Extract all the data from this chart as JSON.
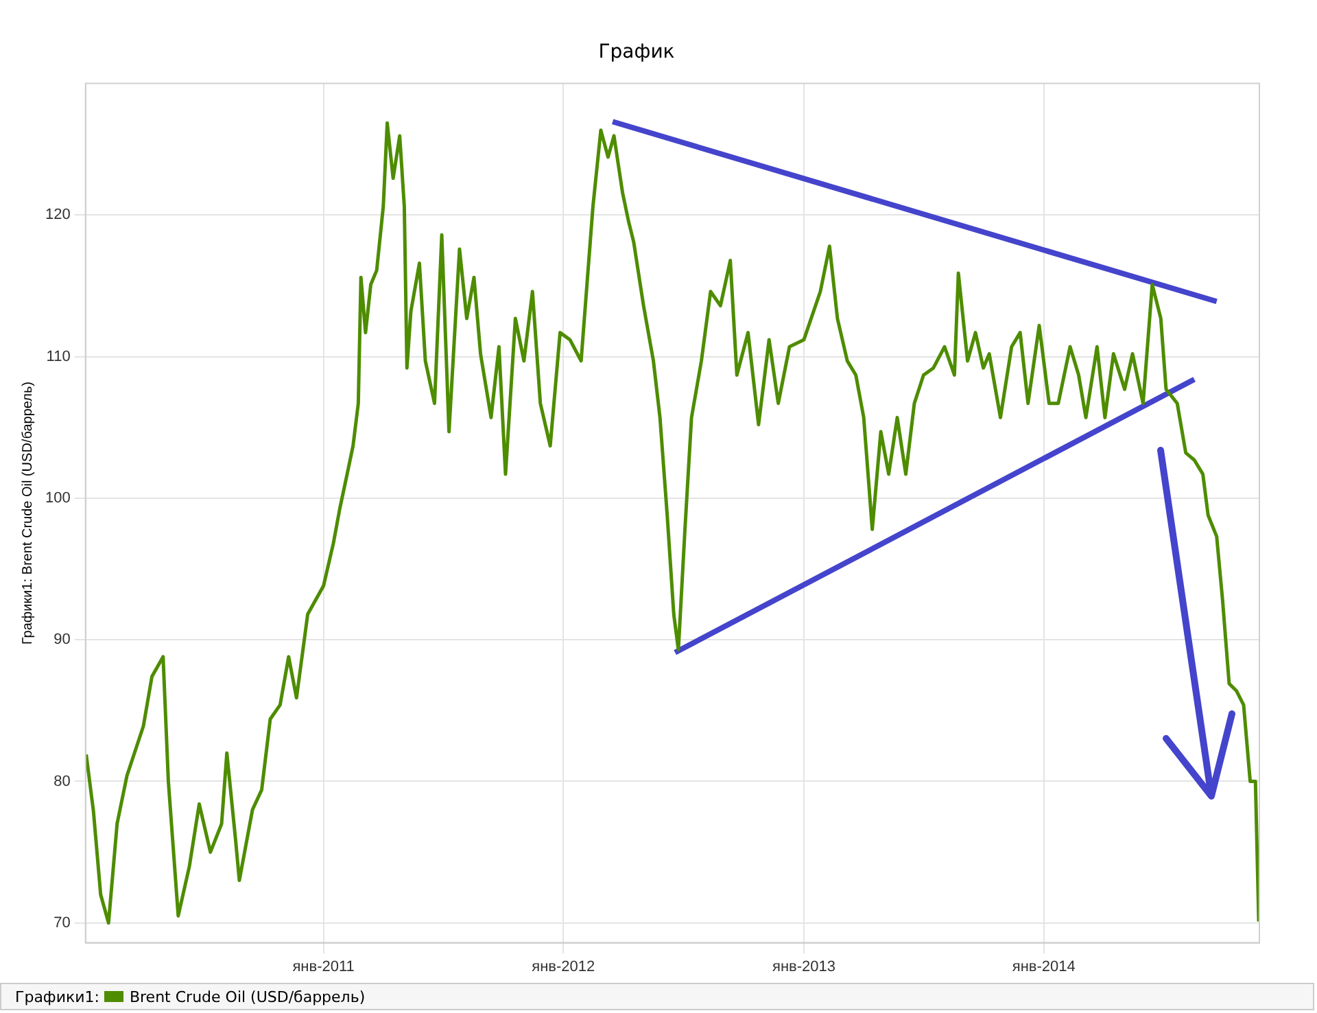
{
  "chart_data": {
    "type": "line",
    "title": "График",
    "ylabel": "Графики1: Brent Crude Oil (USD/баррель)",
    "legend_title": "Графики1:",
    "xlim": [
      "2010-01-04",
      "2014-11-25"
    ],
    "xticks": [
      {
        "value": "2011-01-01",
        "label": "янв-2011"
      },
      {
        "value": "2012-01-01",
        "label": "янв-2012"
      },
      {
        "value": "2013-01-01",
        "label": "янв-2013"
      },
      {
        "value": "2014-01-01",
        "label": "янв-2014"
      }
    ],
    "ylim": [
      68.6,
      129.3
    ],
    "yticks": [
      70,
      80,
      90,
      100,
      110,
      120
    ],
    "grid": true,
    "legend": "bottom left",
    "marker": "none",
    "series": [
      {
        "name": "Brent Crude Oil (USD/баррель)",
        "color": "#4e8c00",
        "x": [
          "2010-01-05",
          "2010-01-16",
          "2010-01-27",
          "2010-02-08",
          "2010-02-21",
          "2010-03-08",
          "2010-04-02",
          "2010-04-15",
          "2010-05-02",
          "2010-05-10",
          "2010-05-25",
          "2010-06-11",
          "2010-06-26",
          "2010-07-13",
          "2010-07-30",
          "2010-08-07",
          "2010-08-20",
          "2010-08-26",
          "2010-09-15",
          "2010-09-29",
          "2010-10-12",
          "2010-10-27",
          "2010-11-09",
          "2010-11-21",
          "2010-12-08",
          "2011-01-01",
          "2011-01-16",
          "2011-01-26",
          "2011-02-06",
          "2011-02-15",
          "2011-02-23",
          "2011-02-27",
          "2011-03-06",
          "2011-03-14",
          "2011-03-23",
          "2011-04-02",
          "2011-04-08",
          "2011-04-17",
          "2011-04-27",
          "2011-05-04",
          "2011-05-08",
          "2011-05-14",
          "2011-05-27",
          "2011-06-05",
          "2011-06-19",
          "2011-06-30",
          "2011-07-11",
          "2011-07-27",
          "2011-08-07",
          "2011-08-18",
          "2011-08-28",
          "2011-09-13",
          "2011-09-25",
          "2011-10-05",
          "2011-10-20",
          "2011-11-02",
          "2011-11-15",
          "2011-11-27",
          "2011-12-12",
          "2011-12-27",
          "2012-01-11",
          "2012-01-28",
          "2012-02-15",
          "2012-02-27",
          "2012-03-09",
          "2012-03-18",
          "2012-03-31",
          "2012-04-09",
          "2012-04-17",
          "2012-05-02",
          "2012-05-17",
          "2012-05-27",
          "2012-06-07",
          "2012-06-17",
          "2012-06-24",
          "2012-07-04",
          "2012-07-14",
          "2012-07-29",
          "2012-08-12",
          "2012-08-27",
          "2012-09-11",
          "2012-09-21",
          "2012-10-08",
          "2012-10-24",
          "2012-11-09",
          "2012-11-23",
          "2012-12-10",
          "2013-01-01",
          "2013-01-26",
          "2013-02-09",
          "2013-02-21",
          "2013-03-08",
          "2013-03-21",
          "2013-04-02",
          "2013-04-15",
          "2013-04-28",
          "2013-05-10",
          "2013-05-23",
          "2013-06-05",
          "2013-06-18",
          "2013-07-02",
          "2013-07-17",
          "2013-08-03",
          "2013-08-18",
          "2013-08-24",
          "2013-09-07",
          "2013-09-19",
          "2013-10-01",
          "2013-10-10",
          "2013-10-27",
          "2013-11-13",
          "2013-11-26",
          "2013-12-08",
          "2013-12-25",
          "2014-01-09",
          "2014-01-23",
          "2014-02-10",
          "2014-02-23",
          "2014-03-06",
          "2014-03-23",
          "2014-04-04",
          "2014-04-17",
          "2014-05-04",
          "2014-05-16",
          "2014-06-01",
          "2014-06-15",
          "2014-06-28",
          "2014-07-06",
          "2014-07-23",
          "2014-08-05",
          "2014-08-18",
          "2014-08-31",
          "2014-09-08",
          "2014-09-21",
          "2014-09-30",
          "2014-10-10",
          "2014-10-21",
          "2014-11-01",
          "2014-11-11",
          "2014-11-19",
          "2014-11-24"
        ],
        "values": [
          81.9,
          77.9,
          72,
          70,
          77,
          80.4,
          83.9,
          87.4,
          88.8,
          80,
          70.5,
          74,
          78.4,
          75,
          77,
          82,
          76,
          73,
          78,
          79.4,
          84.4,
          85.4,
          88.8,
          85.9,
          91.8,
          93.8,
          96.8,
          99.3,
          101.7,
          103.7,
          106.7,
          115.6,
          111.7,
          115.1,
          116.1,
          120.6,
          126.5,
          122.6,
          125.6,
          120.6,
          109.2,
          113.2,
          116.6,
          109.7,
          106.7,
          118.6,
          104.7,
          117.6,
          112.7,
          115.6,
          110.2,
          105.7,
          110.7,
          101.7,
          112.7,
          109.7,
          114.6,
          106.7,
          103.7,
          111.7,
          111.2,
          109.7,
          120.6,
          126,
          124.1,
          125.6,
          121.6,
          119.6,
          118.1,
          113.6,
          109.7,
          105.7,
          98.8,
          91.8,
          89.3,
          97.8,
          105.7,
          109.7,
          114.6,
          113.6,
          116.8,
          108.7,
          111.7,
          105.2,
          111.2,
          106.7,
          110.7,
          111.2,
          114.6,
          117.8,
          112.7,
          109.7,
          108.7,
          105.7,
          97.8,
          104.7,
          101.7,
          105.7,
          101.7,
          106.7,
          108.7,
          109.2,
          110.7,
          108.7,
          115.9,
          109.7,
          111.7,
          109.2,
          110.2,
          105.7,
          110.7,
          111.7,
          106.7,
          112.2,
          106.7,
          106.7,
          110.7,
          108.7,
          105.7,
          110.7,
          105.7,
          110.2,
          107.7,
          110.2,
          106.7,
          115.1,
          112.7,
          107.7,
          106.7,
          103.2,
          102.7,
          101.7,
          98.8,
          97.3,
          92.8,
          86.9,
          86.4,
          85.4,
          80,
          80,
          70.1
        ]
      },
      {
        "type": "line",
        "color": "#4444cc",
        "x": [
          "2012-03-16",
          "2014-09-21"
        ],
        "values": [
          126.6,
          113.9
        ]
      },
      {
        "type": "line",
        "color": "#4444cc",
        "x": [
          "2012-06-19",
          "2014-08-18"
        ],
        "values": [
          89.1,
          108.4
        ]
      }
    ]
  }
}
